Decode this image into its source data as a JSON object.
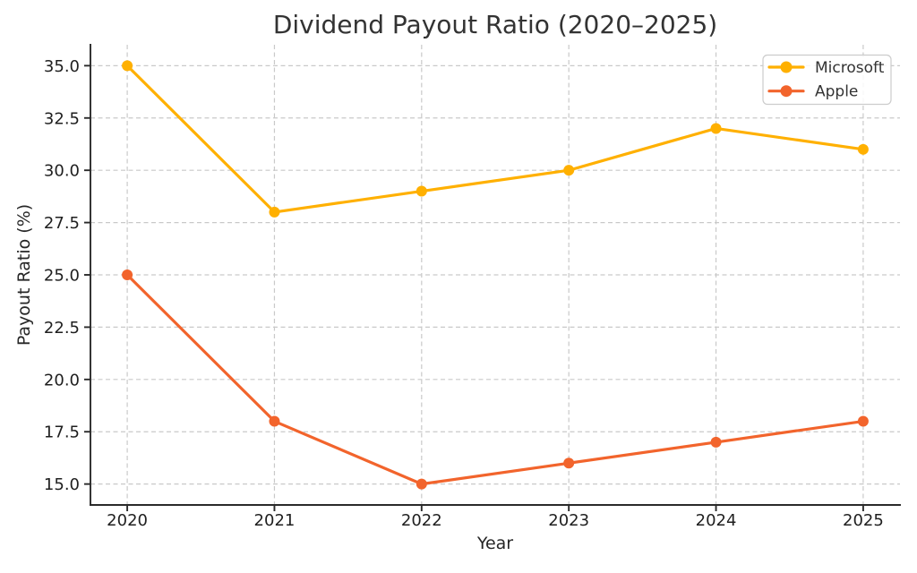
{
  "chart_data": {
    "type": "line",
    "title": "Dividend Payout Ratio (2020–2025)",
    "xlabel": "Year",
    "ylabel": "Payout Ratio (%)",
    "x": [
      2020,
      2021,
      2022,
      2023,
      2024,
      2025
    ],
    "xtick_labels": [
      "2020",
      "2021",
      "2022",
      "2023",
      "2024",
      "2025"
    ],
    "yticks": [
      15.0,
      17.5,
      20.0,
      22.5,
      25.0,
      27.5,
      30.0,
      32.5,
      35.0
    ],
    "ytick_labels": [
      "15.0",
      "17.5",
      "20.0",
      "22.5",
      "25.0",
      "27.5",
      "30.0",
      "32.5",
      "35.0"
    ],
    "xlim": [
      2019.75,
      2025.25
    ],
    "ylim": [
      14,
      36
    ],
    "grid": true,
    "grid_style": "dashed",
    "grid_color": "#c9c9c9",
    "axis_color": "#2a2a2a",
    "text_color": "#262626",
    "legend_position": "upper right",
    "series": [
      {
        "name": "Microsoft",
        "color": "#FFB000",
        "values": [
          35,
          28,
          29,
          30,
          32,
          31
        ]
      },
      {
        "name": "Apple",
        "color": "#F2642C",
        "values": [
          25,
          18,
          15,
          16,
          17,
          18
        ]
      }
    ]
  }
}
